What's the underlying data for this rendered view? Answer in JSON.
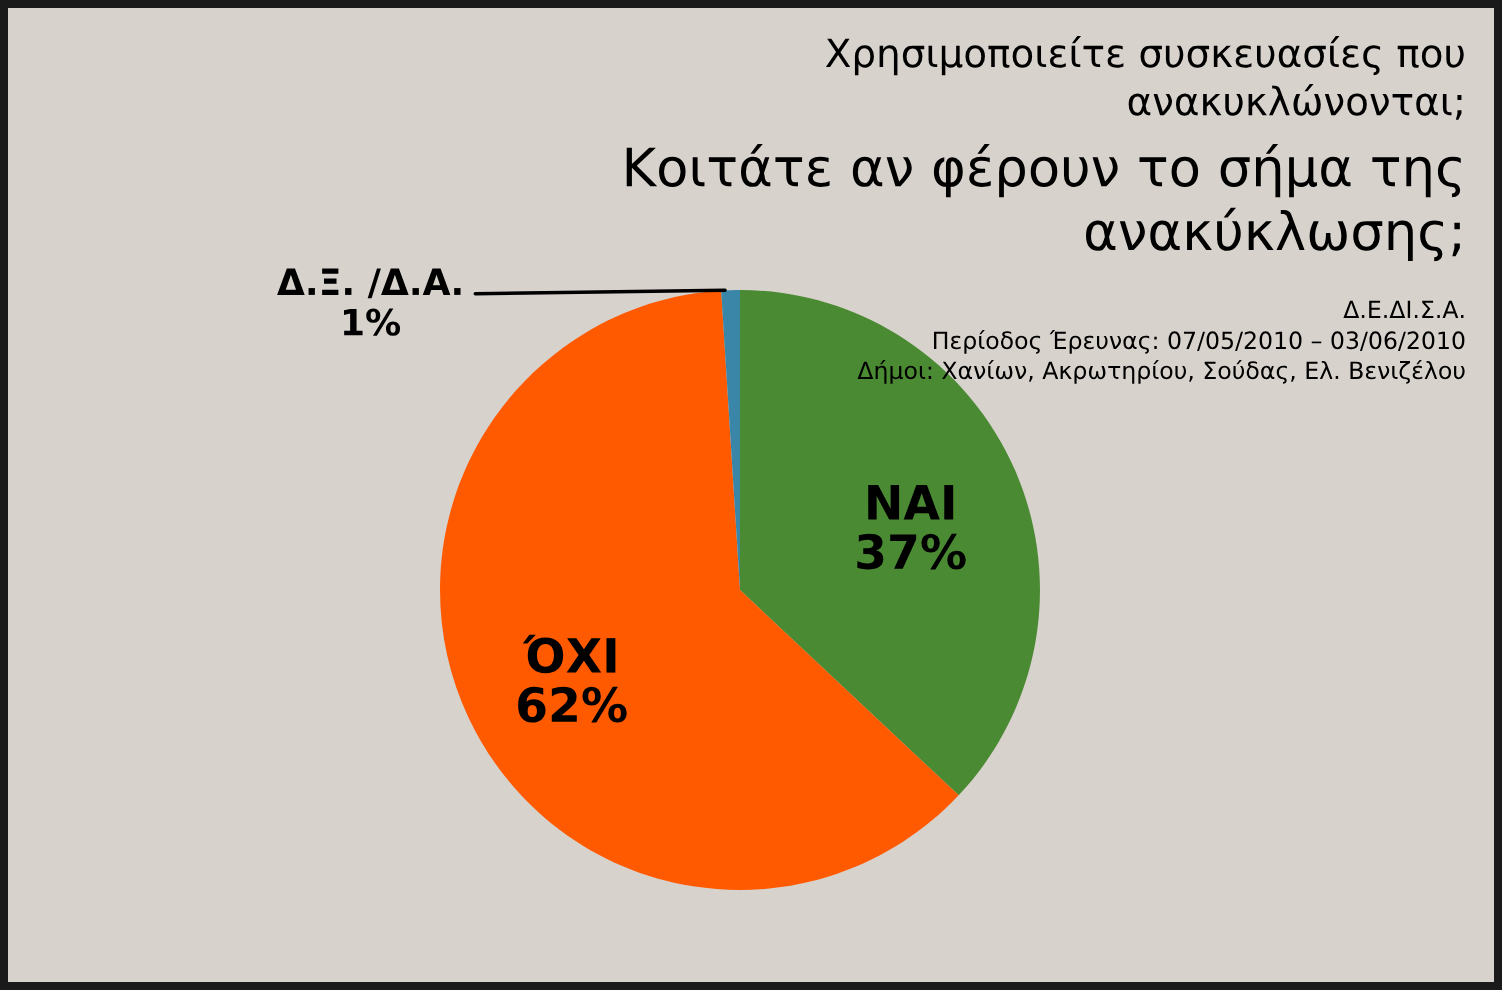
{
  "chart_data": {
    "type": "pie",
    "title": "Χρησιμοποιείτε συσκευασίες που\nανακυκλώνονται;",
    "subtitle": "Κοιτάτε αν φέρουν το σήμα της\nανακύκλωσης;",
    "annotations": [
      "Δ.Ε.ΔΙ.Σ.Α.",
      "Περίοδος Έρευνας: 07/05/2010 – 03/06/2010",
      "Δήμοι: Χανίων, Ακρωτηρίου, Σούδας, Ελ. Βενιζέλου"
    ],
    "categories": [
      "ΝΑΙ",
      "ΌΧΙ",
      "Δ.Ξ. /Δ.Α."
    ],
    "values": [
      37,
      62,
      1
    ],
    "value_labels": [
      "37%",
      "62%",
      "1%"
    ],
    "colors": [
      "#4a8a32",
      "#ff5a00",
      "#3a86a8"
    ],
    "legend": false
  }
}
